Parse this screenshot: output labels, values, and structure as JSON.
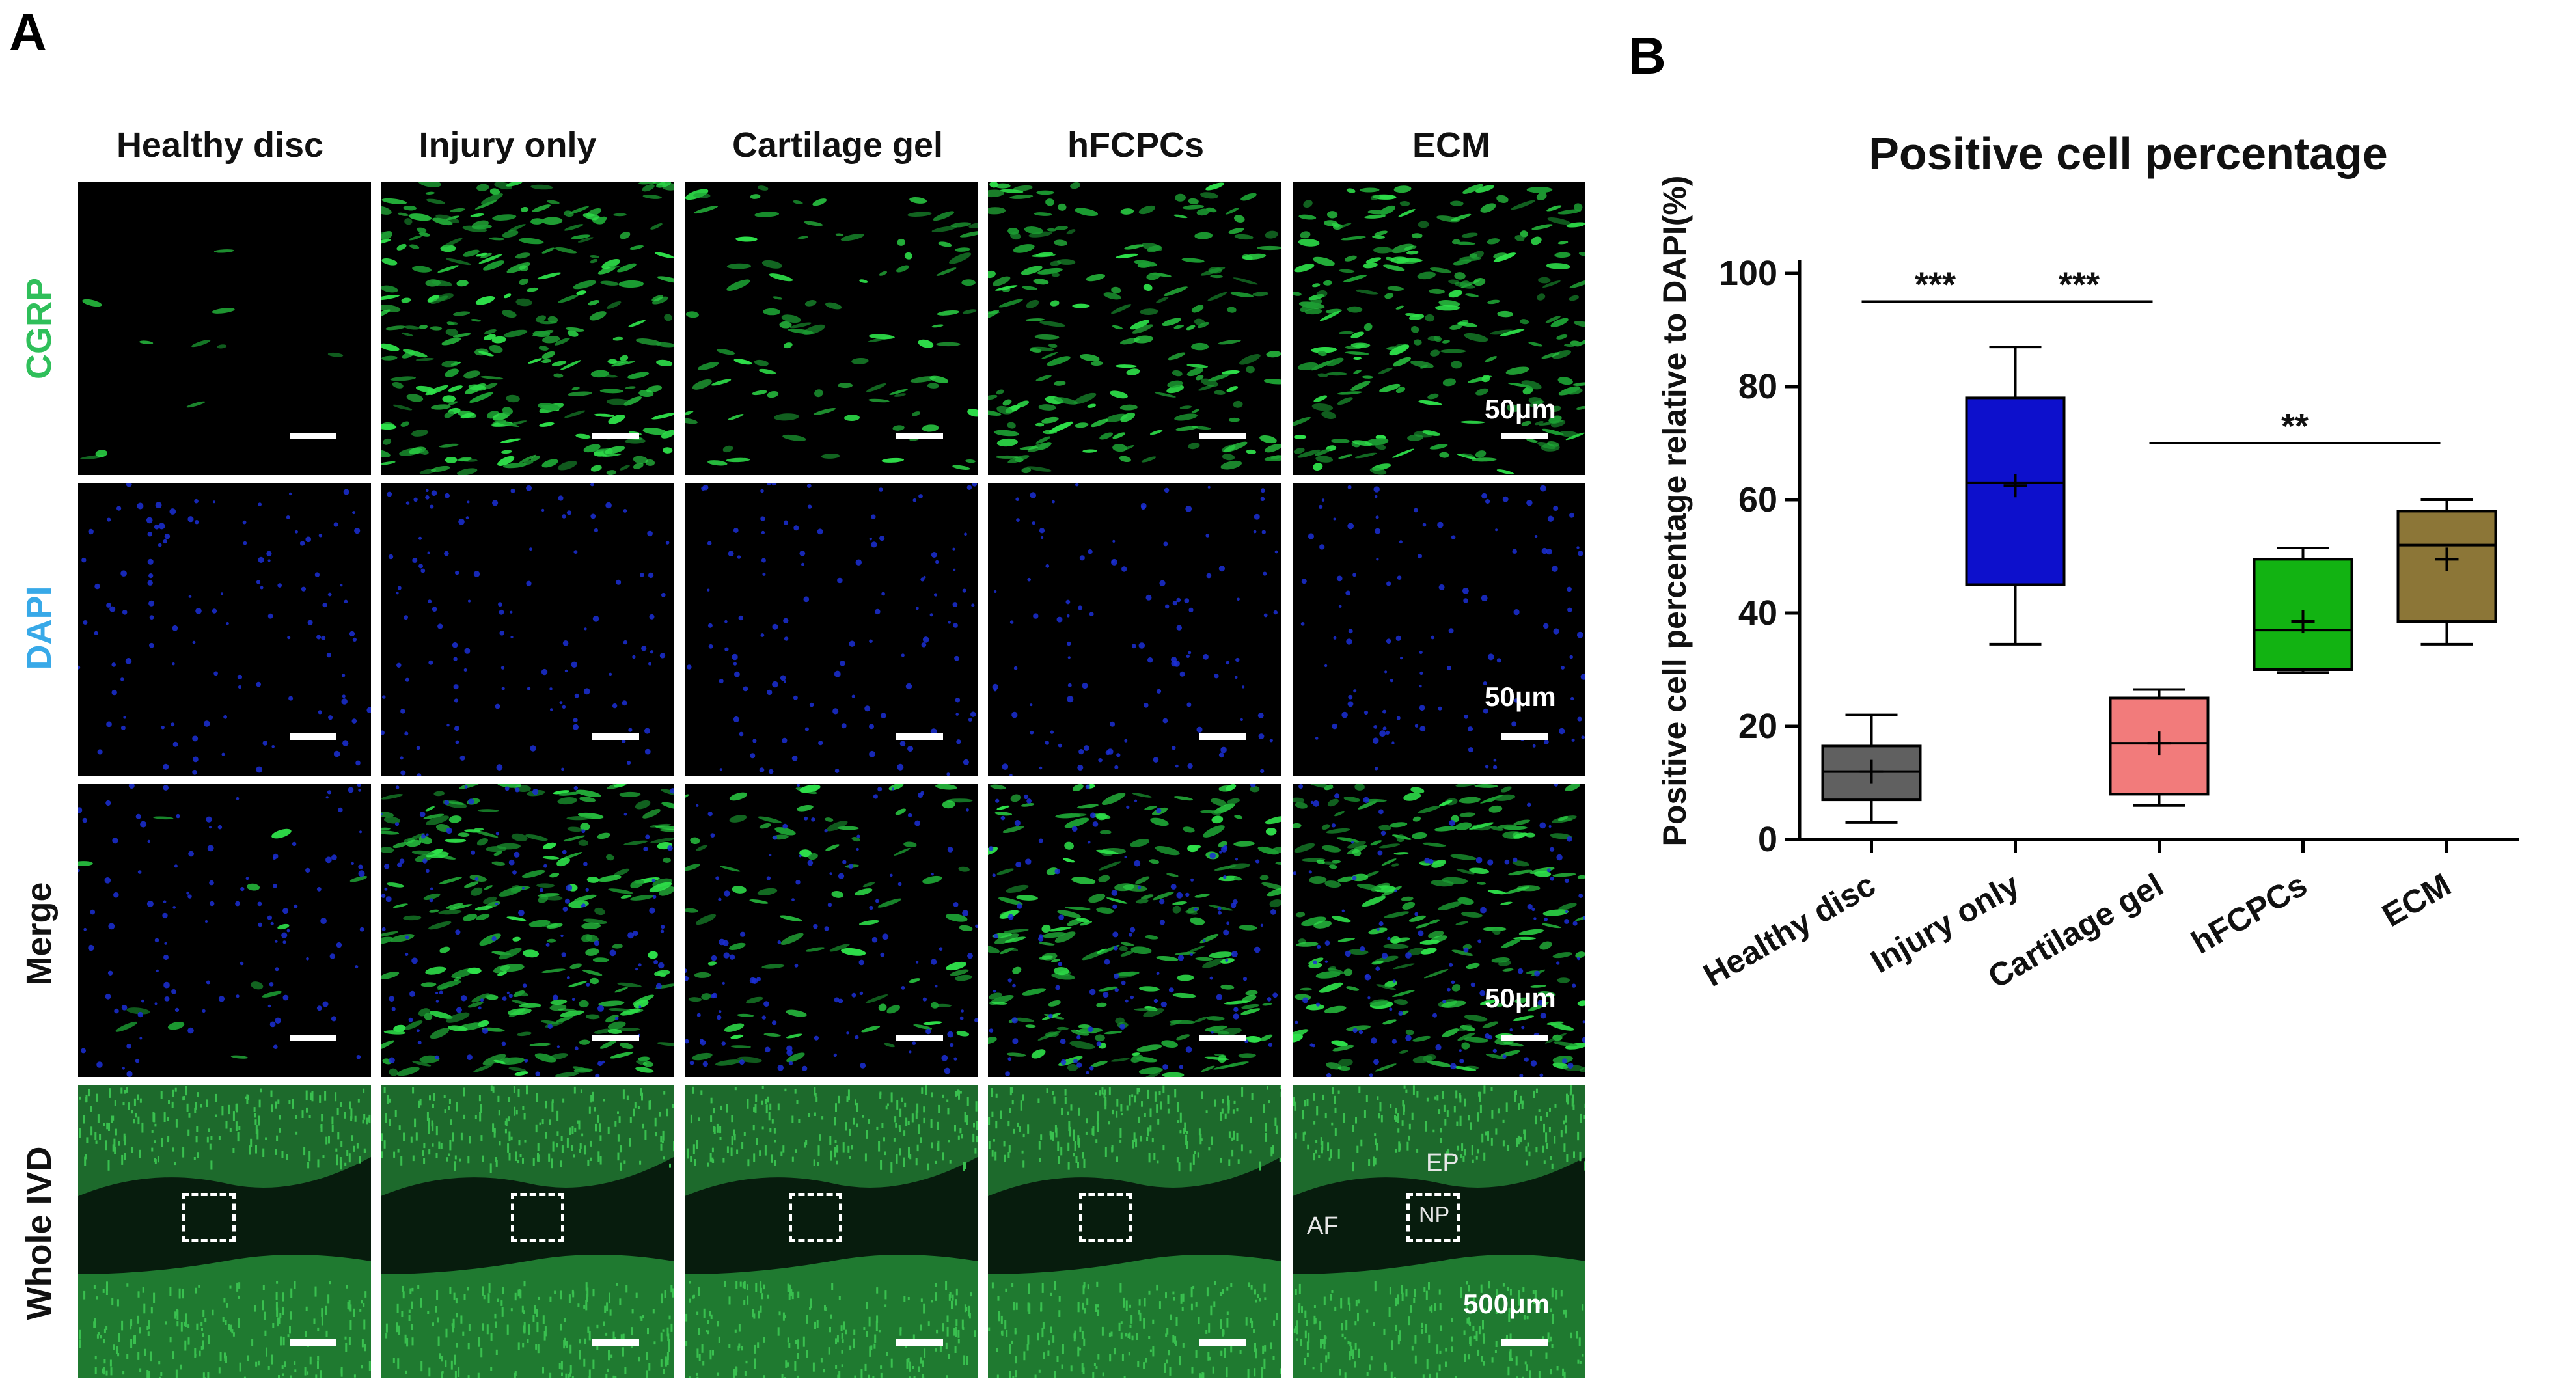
{
  "figure": {
    "panel_a_letter": "A",
    "panel_b_letter": "B",
    "columns": [
      "Healthy disc",
      "Injury only",
      "Cartilage gel",
      "hFCPCs",
      "ECM"
    ],
    "rows": [
      {
        "label": "CGRP",
        "color": "#2fbf5a",
        "scale_bar": "50μm"
      },
      {
        "label": "DAPI",
        "color": "#38a9e8",
        "scale_bar": "50μm"
      },
      {
        "label": "Merge",
        "color": "#111111",
        "scale_bar": "50μm"
      },
      {
        "label": "Whole IVD",
        "color": "#111111",
        "scale_bar": "500μm"
      }
    ],
    "ivd_annotations": {
      "ep": "EP",
      "np": "NP",
      "af": "AF"
    }
  },
  "chart_data": {
    "type": "box",
    "title": "Positive cell percentage",
    "ylabel": "Positive cell percentage relative to DAPI(%)",
    "xlabel": "",
    "ylim": [
      0,
      100
    ],
    "yticks": [
      0,
      20,
      40,
      60,
      80,
      100
    ],
    "grid": false,
    "categories": [
      "Healthy disc",
      "Injury only",
      "Cartilage gel",
      "hFCPCs",
      "ECM"
    ],
    "boxes": [
      {
        "name": "Healthy disc",
        "min": 3,
        "q1": 7,
        "median": 12,
        "q3": 16.5,
        "max": 22,
        "mean": 12,
        "color": "#606060"
      },
      {
        "name": "Injury only",
        "min": 34.5,
        "q1": 45,
        "median": 63,
        "q3": 78,
        "max": 87,
        "mean": 62.5,
        "color": "#0d10cc"
      },
      {
        "name": "Cartilage gel",
        "min": 6,
        "q1": 8,
        "median": 17,
        "q3": 25,
        "max": 26.5,
        "mean": 17,
        "color": "#f27b7b"
      },
      {
        "name": "hFCPCs",
        "min": 29.5,
        "q1": 30,
        "median": 37,
        "q3": 49.5,
        "max": 51.5,
        "mean": 38.5,
        "color": "#12b312"
      },
      {
        "name": "ECM",
        "min": 34.5,
        "q1": 38.5,
        "median": 52,
        "q3": 58,
        "max": 60,
        "mean": 49.5,
        "color": "#8c7637"
      }
    ],
    "significance": [
      {
        "from": "Healthy disc",
        "to": "Injury only",
        "y": 95,
        "label": "***"
      },
      {
        "from": "Injury only",
        "to": "Cartilage gel",
        "y": 95,
        "label": "***"
      },
      {
        "from": "Cartilage gel",
        "to": "ECM",
        "y": 70,
        "label": "**"
      }
    ]
  }
}
